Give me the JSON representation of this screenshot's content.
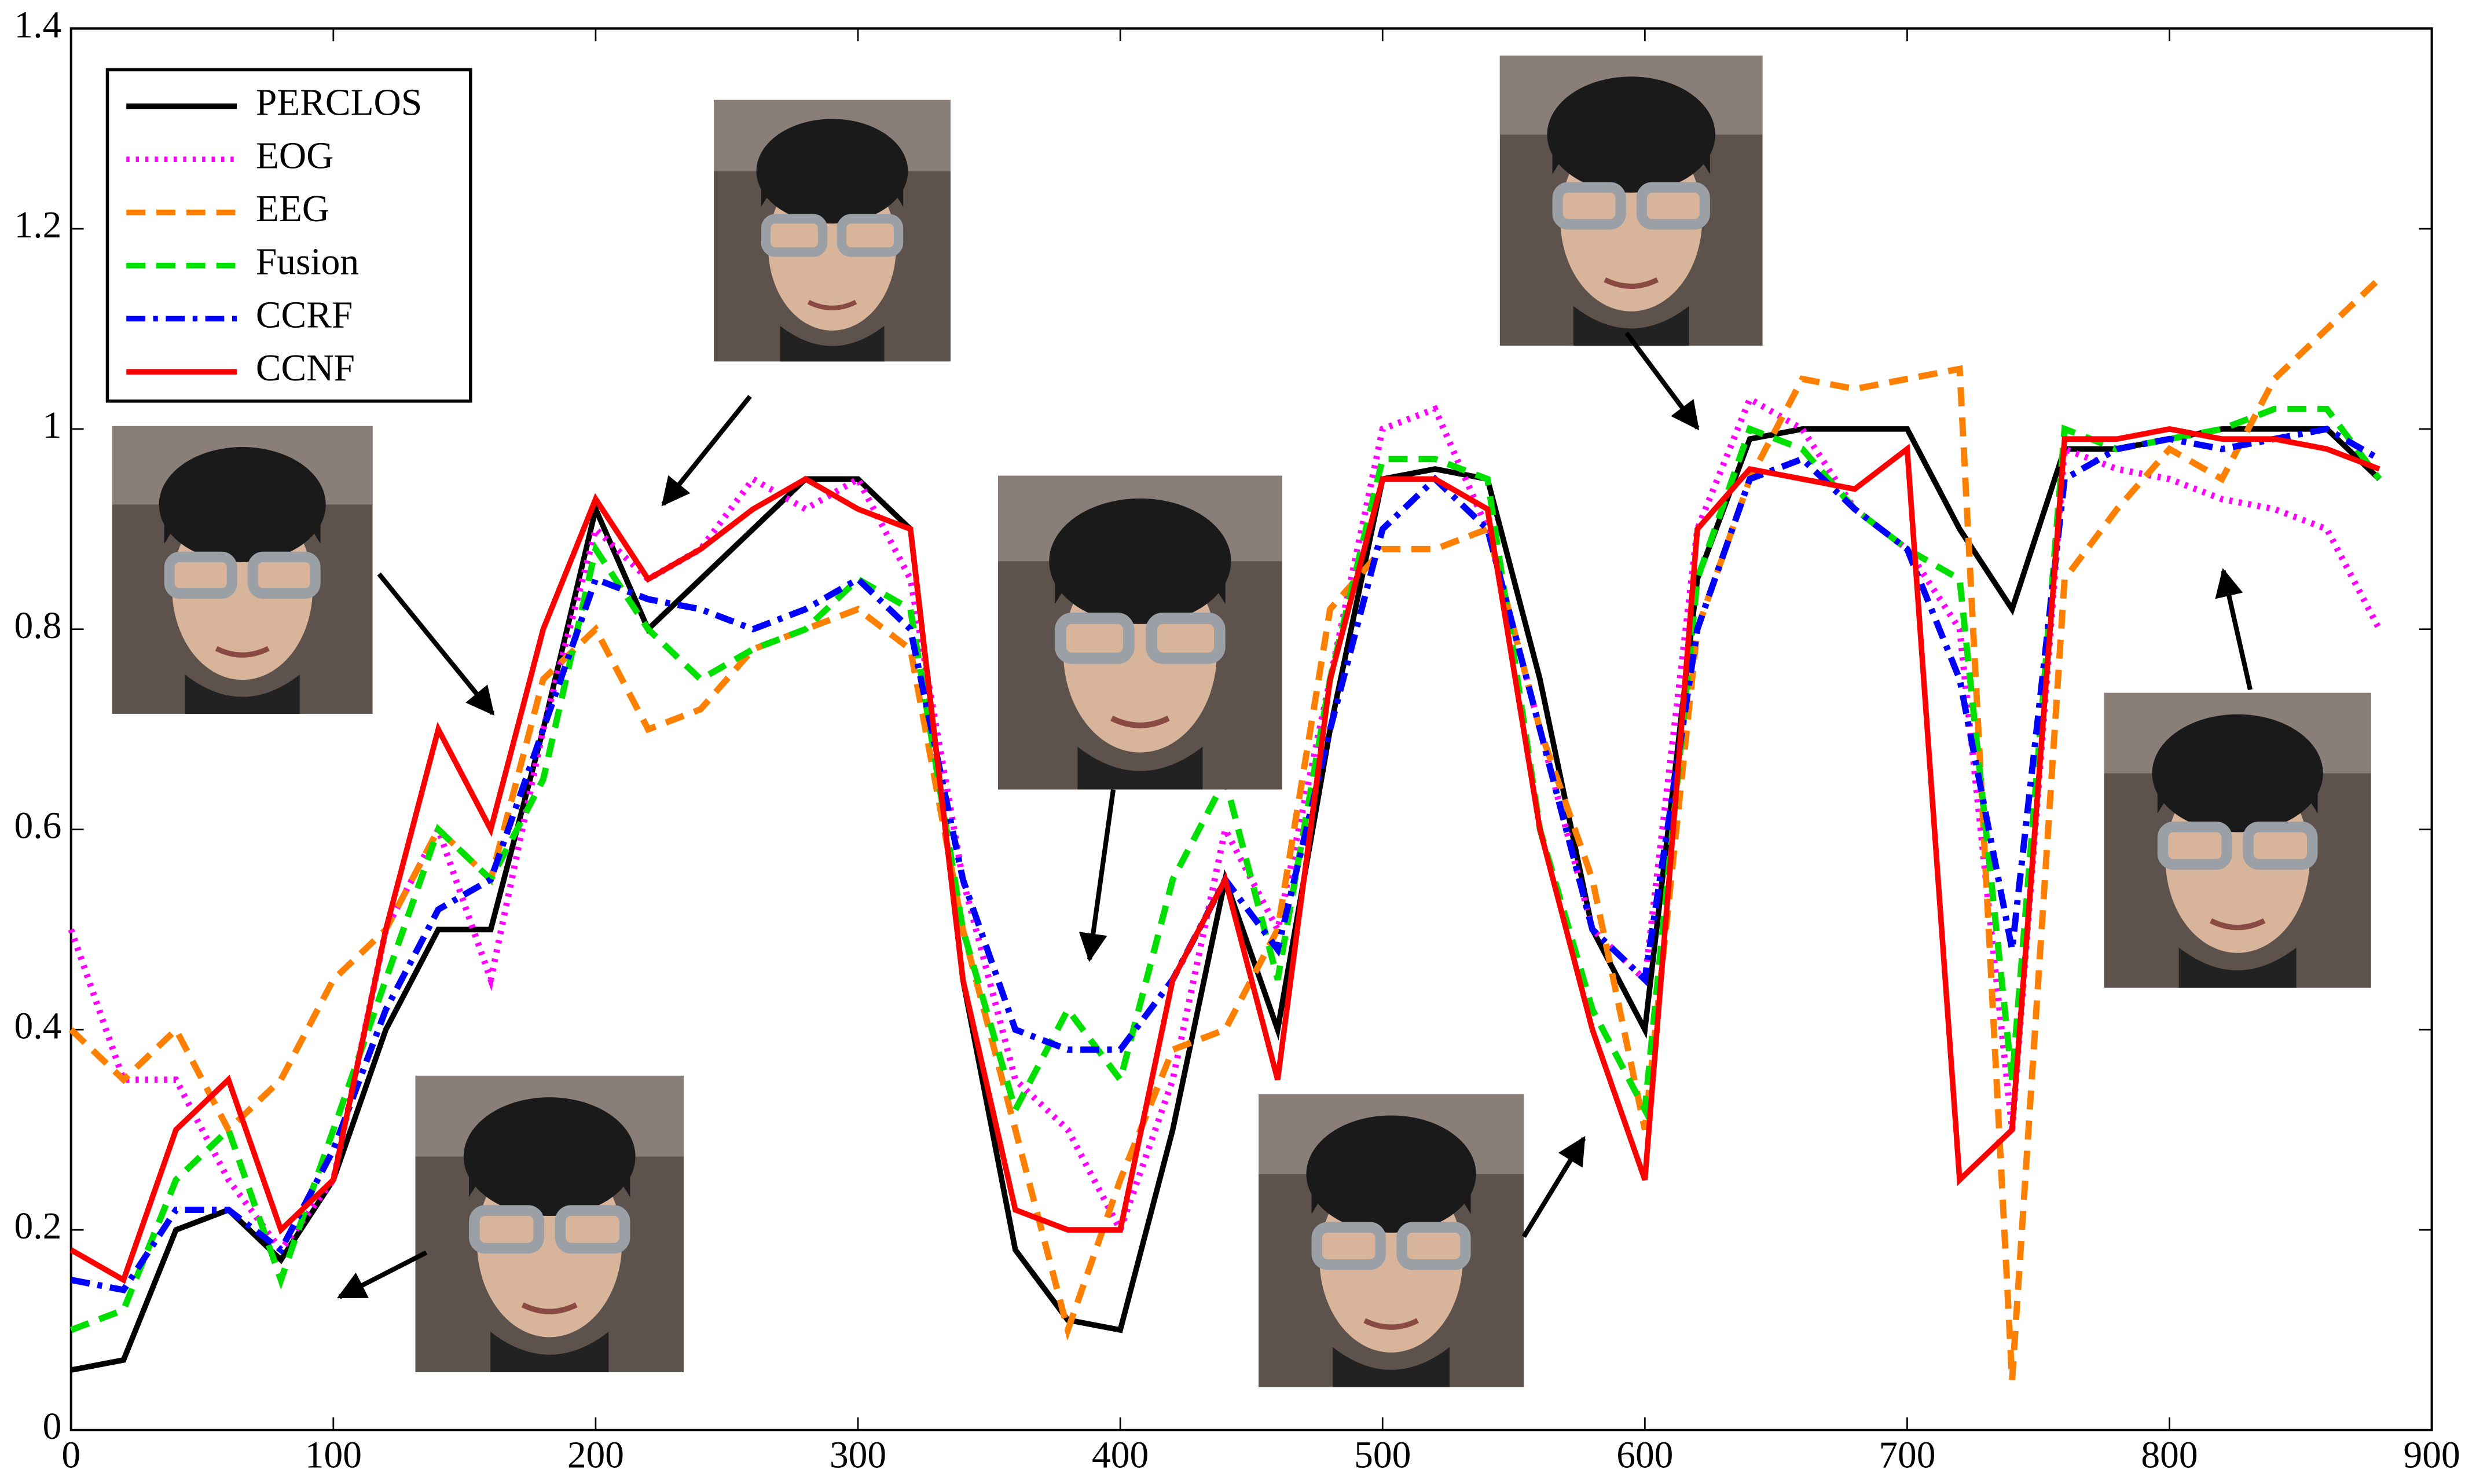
{
  "chart_data": {
    "type": "line",
    "x": [
      0,
      20,
      40,
      60,
      80,
      100,
      120,
      140,
      160,
      180,
      200,
      220,
      240,
      260,
      280,
      300,
      320,
      340,
      360,
      380,
      400,
      420,
      440,
      460,
      480,
      500,
      520,
      540,
      560,
      580,
      600,
      620,
      640,
      660,
      680,
      700,
      720,
      740,
      760,
      780,
      800,
      820,
      840,
      860,
      880
    ],
    "series": [
      {
        "name": "PERCLOS",
        "color": "#000000",
        "style": "solid",
        "values": [
          0.06,
          0.07,
          0.2,
          0.22,
          0.17,
          0.25,
          0.4,
          0.5,
          0.5,
          0.7,
          0.92,
          0.8,
          0.85,
          0.9,
          0.95,
          0.95,
          0.9,
          0.45,
          0.18,
          0.11,
          0.1,
          0.3,
          0.55,
          0.4,
          0.7,
          0.95,
          0.96,
          0.95,
          0.75,
          0.5,
          0.4,
          0.85,
          0.99,
          1.0,
          1.0,
          1.0,
          0.9,
          0.82,
          0.98,
          0.98,
          0.99,
          1.0,
          1.0,
          1.0,
          0.95
        ]
      },
      {
        "name": "EOG",
        "color": "#ff00ff",
        "style": "dotted",
        "values": [
          0.5,
          0.35,
          0.35,
          0.25,
          0.18,
          0.25,
          0.5,
          0.6,
          0.45,
          0.7,
          0.9,
          0.85,
          0.88,
          0.95,
          0.92,
          0.95,
          0.85,
          0.55,
          0.35,
          0.3,
          0.2,
          0.35,
          0.6,
          0.5,
          0.75,
          1.0,
          1.02,
          0.9,
          0.7,
          0.5,
          0.45,
          0.9,
          1.03,
          1.0,
          0.92,
          0.88,
          0.8,
          0.3,
          0.98,
          0.96,
          0.95,
          0.93,
          0.92,
          0.9,
          0.8
        ]
      },
      {
        "name": "EEG",
        "color": "#ff8000",
        "style": "dashed",
        "values": [
          0.4,
          0.35,
          0.4,
          0.3,
          0.35,
          0.45,
          0.5,
          0.6,
          0.55,
          0.75,
          0.8,
          0.7,
          0.72,
          0.78,
          0.8,
          0.82,
          0.78,
          0.5,
          0.3,
          0.1,
          0.25,
          0.38,
          0.4,
          0.5,
          0.82,
          0.88,
          0.88,
          0.9,
          0.7,
          0.55,
          0.3,
          0.8,
          0.95,
          1.05,
          1.04,
          1.05,
          1.06,
          0.05,
          0.85,
          0.92,
          0.98,
          0.95,
          1.05,
          1.1,
          1.15
        ]
      },
      {
        "name": "Fusion",
        "color": "#00e000",
        "style": "dashed",
        "values": [
          0.1,
          0.12,
          0.25,
          0.3,
          0.15,
          0.3,
          0.45,
          0.6,
          0.55,
          0.65,
          0.88,
          0.8,
          0.75,
          0.78,
          0.8,
          0.85,
          0.82,
          0.5,
          0.32,
          0.42,
          0.35,
          0.55,
          0.65,
          0.45,
          0.75,
          0.97,
          0.97,
          0.95,
          0.6,
          0.42,
          0.32,
          0.85,
          1.0,
          0.98,
          0.92,
          0.88,
          0.85,
          0.35,
          1.0,
          0.98,
          0.99,
          1.0,
          1.02,
          1.02,
          0.95
        ]
      },
      {
        "name": "CCRF",
        "color": "#0000ff",
        "style": "dashdot",
        "values": [
          0.15,
          0.14,
          0.22,
          0.22,
          0.18,
          0.28,
          0.42,
          0.52,
          0.55,
          0.7,
          0.85,
          0.83,
          0.82,
          0.8,
          0.82,
          0.85,
          0.8,
          0.55,
          0.4,
          0.38,
          0.38,
          0.45,
          0.55,
          0.48,
          0.7,
          0.9,
          0.95,
          0.9,
          0.7,
          0.5,
          0.45,
          0.8,
          0.95,
          0.97,
          0.92,
          0.88,
          0.75,
          0.48,
          0.95,
          0.98,
          0.99,
          0.98,
          0.99,
          1.0,
          0.97
        ]
      },
      {
        "name": "CCNF",
        "color": "#ff0000",
        "style": "solid",
        "values": [
          0.18,
          0.15,
          0.3,
          0.35,
          0.2,
          0.25,
          0.5,
          0.7,
          0.6,
          0.8,
          0.93,
          0.85,
          0.88,
          0.92,
          0.95,
          0.92,
          0.9,
          0.45,
          0.22,
          0.2,
          0.2,
          0.45,
          0.55,
          0.35,
          0.75,
          0.95,
          0.95,
          0.92,
          0.6,
          0.4,
          0.25,
          0.9,
          0.96,
          0.95,
          0.94,
          0.98,
          0.25,
          0.3,
          0.99,
          0.99,
          1.0,
          0.99,
          0.99,
          0.98,
          0.96
        ]
      }
    ],
    "xlim": [
      0,
      900
    ],
    "xticks": [
      0,
      100,
      200,
      300,
      400,
      500,
      600,
      700,
      800,
      900
    ],
    "ylim": [
      0,
      1.4
    ],
    "yticks": [
      0,
      0.2,
      0.4,
      0.6,
      0.8,
      1,
      1.2,
      1.4
    ],
    "legend": "upper left"
  }
}
